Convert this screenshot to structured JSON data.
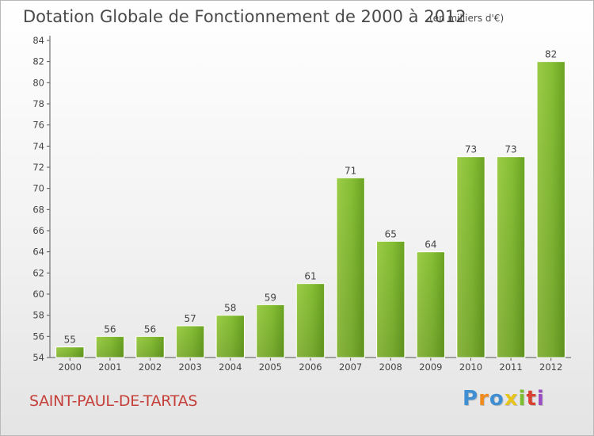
{
  "chart_data": {
    "type": "bar",
    "title": "Dotation Globale de Fonctionnement de 2000 à 2012",
    "subtitle": "(en milliers d'€)",
    "categories": [
      "2000",
      "2001",
      "2002",
      "2003",
      "2004",
      "2005",
      "2006",
      "2007",
      "2008",
      "2009",
      "2010",
      "2011",
      "2012"
    ],
    "values": [
      55,
      56,
      56,
      57,
      58,
      59,
      61,
      71,
      65,
      64,
      73,
      73,
      82
    ],
    "ylim": [
      54,
      84
    ],
    "yticks": [
      54,
      56,
      58,
      60,
      62,
      64,
      66,
      68,
      70,
      72,
      74,
      76,
      78,
      80,
      82,
      84
    ],
    "xlabel": "",
    "ylabel": "",
    "grid": false,
    "bar_color": "#7bb72a"
  },
  "commune": "SAINT-PAUL-DE-TARTAS",
  "logo_text": "Proxiti"
}
